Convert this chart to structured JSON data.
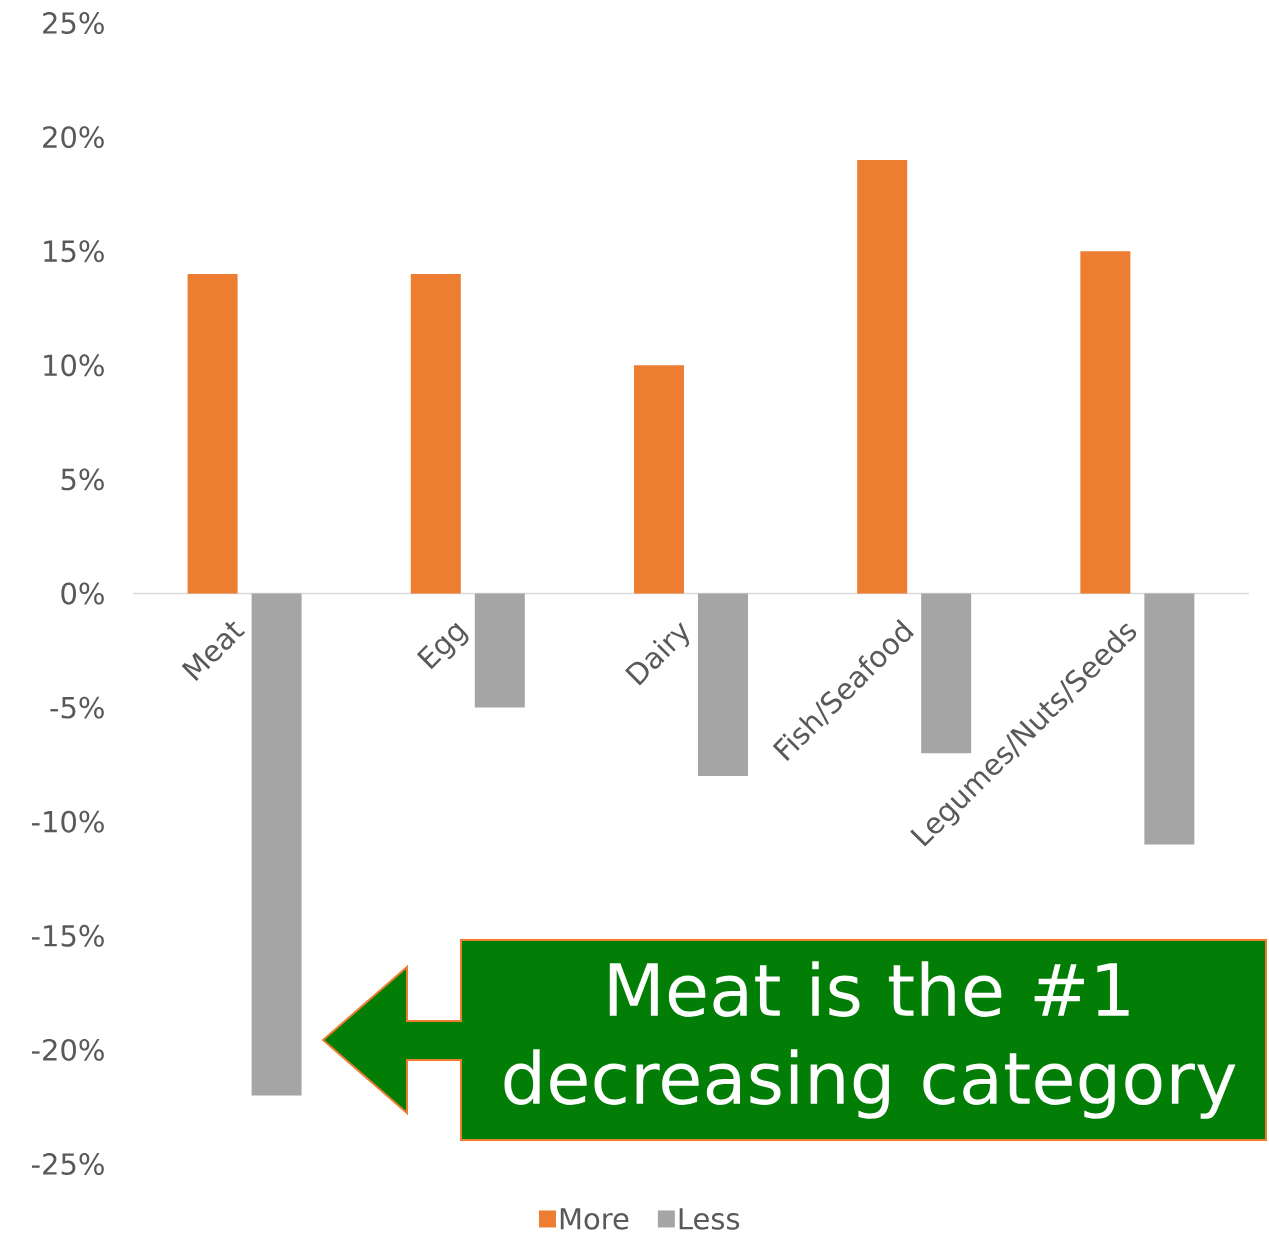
{
  "chart_data": {
    "type": "bar",
    "categories": [
      "Meat",
      "Egg",
      "Dairy",
      "Fish/Seafood",
      "Legumes/Nuts/Seeds"
    ],
    "series": [
      {
        "name": "More",
        "color": "#ed7d31",
        "values": [
          14,
          14,
          10,
          19,
          15
        ]
      },
      {
        "name": "Less",
        "color": "#a5a5a5",
        "values": [
          -22,
          -5,
          -8,
          -7,
          -11
        ]
      }
    ],
    "ylim": [
      -25,
      25
    ],
    "yticks": [
      {
        "value": -25,
        "label": "-25%"
      },
      {
        "value": -20,
        "label": "-20%"
      },
      {
        "value": -15,
        "label": "-15%"
      },
      {
        "value": -10,
        "label": "-10%"
      },
      {
        "value": -5,
        "label": "-5%"
      },
      {
        "value": 0,
        "label": "0%"
      },
      {
        "value": 5,
        "label": "5%"
      },
      {
        "value": 10,
        "label": "10%"
      },
      {
        "value": 15,
        "label": "15%"
      },
      {
        "value": 20,
        "label": "20%"
      },
      {
        "value": 25,
        "label": "25%"
      }
    ],
    "legend": "bottom",
    "annotations": [
      "Meat is the #1 decreasing category"
    ]
  }
}
